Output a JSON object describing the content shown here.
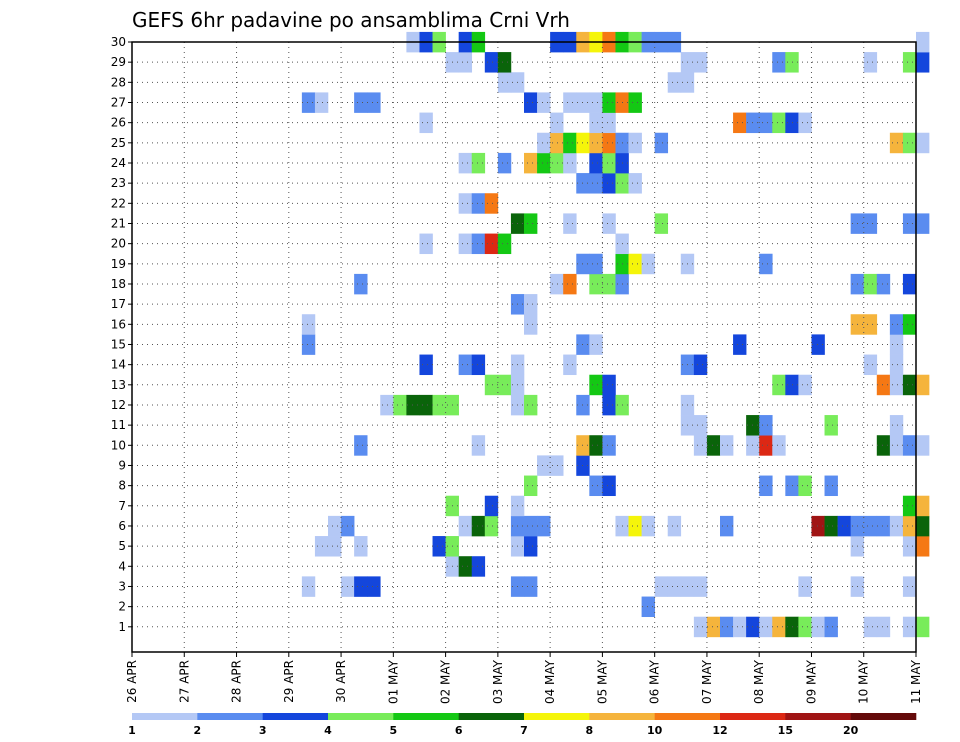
{
  "chart_data": {
    "type": "heatmap",
    "title": "GEFS 6hr padavine po ansamblima Crni Vrh",
    "y_ticks": [
      "1",
      "2",
      "3",
      "4",
      "5",
      "6",
      "7",
      "8",
      "9",
      "10",
      "11",
      "12",
      "13",
      "14",
      "15",
      "16",
      "17",
      "18",
      "19",
      "20",
      "21",
      "22",
      "23",
      "24",
      "25",
      "26",
      "27",
      "28",
      "29",
      "30"
    ],
    "x_ticks": [
      "26 APR",
      "27 APR",
      "28 APR",
      "29 APR",
      "30 APR",
      "01 MAY",
      "02 MAY",
      "03 MAY",
      "04 MAY",
      "05 MAY",
      "06 MAY",
      "07 MAY",
      "08 MAY",
      "09 MAY",
      "10 MAY",
      "11 MAY"
    ],
    "x_range_6hr_steps": [
      0,
      60
    ],
    "grid": true,
    "legend": {
      "placement": "bottom",
      "thresholds": [
        "1",
        "2",
        "3",
        "4",
        "5",
        "6",
        "7",
        "8",
        "10",
        "12",
        "15",
        "20"
      ],
      "colors": [
        "#b4c8f5",
        "#5a8cf0",
        "#1446dc",
        "#78ec5a",
        "#14c814",
        "#0a640a",
        "#f5f50a",
        "#f5b43c",
        "#f57814",
        "#dc2814",
        "#a01414",
        "#640a0a"
      ]
    },
    "cells": [
      [
        1,
        43,
        1
      ],
      [
        1,
        44,
        8
      ],
      [
        1,
        45,
        2
      ],
      [
        1,
        46,
        1
      ],
      [
        1,
        47,
        3
      ],
      [
        1,
        48,
        1
      ],
      [
        1,
        49,
        8
      ],
      [
        1,
        50,
        6
      ],
      [
        1,
        51,
        4
      ],
      [
        1,
        52,
        1
      ],
      [
        1,
        53,
        2
      ],
      [
        1,
        56,
        1
      ],
      [
        1,
        57,
        1
      ],
      [
        1,
        59,
        1
      ],
      [
        1,
        60,
        4
      ],
      [
        2,
        39,
        2
      ],
      [
        3,
        13,
        1
      ],
      [
        3,
        16,
        1
      ],
      [
        3,
        17,
        3
      ],
      [
        3,
        18,
        3
      ],
      [
        3,
        29,
        2
      ],
      [
        3,
        30,
        2
      ],
      [
        3,
        40,
        1
      ],
      [
        3,
        41,
        1
      ],
      [
        3,
        42,
        1
      ],
      [
        3,
        43,
        1
      ],
      [
        3,
        51,
        1
      ],
      [
        3,
        55,
        1
      ],
      [
        3,
        59,
        1
      ],
      [
        4,
        24,
        1
      ],
      [
        4,
        25,
        6
      ],
      [
        4,
        26,
        3
      ],
      [
        5,
        14,
        1
      ],
      [
        5,
        15,
        1
      ],
      [
        5,
        17,
        1
      ],
      [
        5,
        23,
        3
      ],
      [
        5,
        24,
        4
      ],
      [
        5,
        29,
        1
      ],
      [
        5,
        30,
        3
      ],
      [
        5,
        55,
        1
      ],
      [
        5,
        59,
        1
      ],
      [
        5,
        60,
        9
      ],
      [
        6,
        15,
        1
      ],
      [
        6,
        16,
        2
      ],
      [
        6,
        25,
        1
      ],
      [
        6,
        26,
        6
      ],
      [
        6,
        27,
        4
      ],
      [
        6,
        29,
        2
      ],
      [
        6,
        30,
        2
      ],
      [
        6,
        31,
        2
      ],
      [
        6,
        37,
        1
      ],
      [
        6,
        38,
        7
      ],
      [
        6,
        39,
        1
      ],
      [
        6,
        41,
        1
      ],
      [
        6,
        45,
        2
      ],
      [
        6,
        52,
        11
      ],
      [
        6,
        53,
        6
      ],
      [
        6,
        54,
        3
      ],
      [
        6,
        55,
        2
      ],
      [
        6,
        56,
        2
      ],
      [
        6,
        57,
        2
      ],
      [
        6,
        58,
        1
      ],
      [
        6,
        59,
        8
      ],
      [
        6,
        60,
        6
      ],
      [
        7,
        24,
        4
      ],
      [
        7,
        27,
        3
      ],
      [
        7,
        29,
        1
      ],
      [
        7,
        59,
        5
      ],
      [
        7,
        60,
        8
      ],
      [
        8,
        30,
        4
      ],
      [
        8,
        35,
        2
      ],
      [
        8,
        36,
        3
      ],
      [
        8,
        48,
        2
      ],
      [
        8,
        50,
        2
      ],
      [
        8,
        51,
        4
      ],
      [
        8,
        53,
        2
      ],
      [
        9,
        31,
        1
      ],
      [
        9,
        32,
        1
      ],
      [
        9,
        34,
        3
      ],
      [
        10,
        17,
        2
      ],
      [
        10,
        26,
        1
      ],
      [
        10,
        34,
        8
      ],
      [
        10,
        35,
        6
      ],
      [
        10,
        36,
        2
      ],
      [
        10,
        43,
        1
      ],
      [
        10,
        44,
        6
      ],
      [
        10,
        45,
        1
      ],
      [
        10,
        47,
        1
      ],
      [
        10,
        48,
        10
      ],
      [
        10,
        49,
        1
      ],
      [
        10,
        57,
        6
      ],
      [
        10,
        58,
        1
      ],
      [
        10,
        59,
        2
      ],
      [
        10,
        60,
        1
      ],
      [
        11,
        42,
        1
      ],
      [
        11,
        43,
        1
      ],
      [
        11,
        47,
        6
      ],
      [
        11,
        48,
        2
      ],
      [
        11,
        53,
        4
      ],
      [
        11,
        58,
        1
      ],
      [
        12,
        19,
        1
      ],
      [
        12,
        20,
        4
      ],
      [
        12,
        21,
        6
      ],
      [
        12,
        22,
        6
      ],
      [
        12,
        23,
        4
      ],
      [
        12,
        24,
        4
      ],
      [
        12,
        29,
        1
      ],
      [
        12,
        30,
        4
      ],
      [
        12,
        34,
        2
      ],
      [
        12,
        36,
        3
      ],
      [
        12,
        37,
        4
      ],
      [
        12,
        42,
        1
      ],
      [
        13,
        27,
        4
      ],
      [
        13,
        28,
        4
      ],
      [
        13,
        29,
        1
      ],
      [
        13,
        35,
        5
      ],
      [
        13,
        36,
        3
      ],
      [
        13,
        49,
        4
      ],
      [
        13,
        50,
        3
      ],
      [
        13,
        51,
        1
      ],
      [
        13,
        57,
        9
      ],
      [
        13,
        58,
        1
      ],
      [
        13,
        59,
        6
      ],
      [
        13,
        60,
        8
      ],
      [
        14,
        22,
        3
      ],
      [
        14,
        25,
        2
      ],
      [
        14,
        26,
        3
      ],
      [
        14,
        29,
        1
      ],
      [
        14,
        33,
        1
      ],
      [
        14,
        42,
        2
      ],
      [
        14,
        43,
        3
      ],
      [
        14,
        56,
        1
      ],
      [
        14,
        58,
        1
      ],
      [
        15,
        13,
        2
      ],
      [
        15,
        34,
        2
      ],
      [
        15,
        35,
        1
      ],
      [
        15,
        46,
        3
      ],
      [
        15,
        52,
        3
      ],
      [
        15,
        58,
        1
      ],
      [
        16,
        13,
        1
      ],
      [
        16,
        30,
        1
      ],
      [
        16,
        55,
        8
      ],
      [
        16,
        56,
        8
      ],
      [
        16,
        58,
        2
      ],
      [
        16,
        59,
        5
      ],
      [
        17,
        29,
        2
      ],
      [
        17,
        30,
        1
      ],
      [
        18,
        17,
        2
      ],
      [
        18,
        32,
        1
      ],
      [
        18,
        33,
        9
      ],
      [
        18,
        35,
        4
      ],
      [
        18,
        36,
        4
      ],
      [
        18,
        37,
        2
      ],
      [
        18,
        55,
        2
      ],
      [
        18,
        56,
        4
      ],
      [
        18,
        57,
        2
      ],
      [
        18,
        59,
        3
      ],
      [
        19,
        34,
        2
      ],
      [
        19,
        35,
        2
      ],
      [
        19,
        37,
        5
      ],
      [
        19,
        38,
        7
      ],
      [
        19,
        39,
        1
      ],
      [
        19,
        42,
        1
      ],
      [
        19,
        48,
        2
      ],
      [
        20,
        22,
        1
      ],
      [
        20,
        25,
        1
      ],
      [
        20,
        26,
        2
      ],
      [
        20,
        27,
        10
      ],
      [
        20,
        28,
        5
      ],
      [
        20,
        37,
        1
      ],
      [
        21,
        29,
        6
      ],
      [
        21,
        30,
        5
      ],
      [
        21,
        33,
        1
      ],
      [
        21,
        36,
        1
      ],
      [
        21,
        40,
        4
      ],
      [
        21,
        55,
        2
      ],
      [
        21,
        56,
        2
      ],
      [
        21,
        59,
        2
      ],
      [
        21,
        60,
        2
      ],
      [
        22,
        25,
        1
      ],
      [
        22,
        26,
        2
      ],
      [
        22,
        27,
        9
      ],
      [
        23,
        34,
        2
      ],
      [
        23,
        35,
        2
      ],
      [
        23,
        36,
        3
      ],
      [
        23,
        37,
        4
      ],
      [
        23,
        38,
        1
      ],
      [
        24,
        25,
        1
      ],
      [
        24,
        26,
        4
      ],
      [
        24,
        28,
        2
      ],
      [
        24,
        30,
        8
      ],
      [
        24,
        31,
        5
      ],
      [
        24,
        32,
        4
      ],
      [
        24,
        33,
        1
      ],
      [
        24,
        35,
        3
      ],
      [
        24,
        36,
        4
      ],
      [
        24,
        37,
        3
      ],
      [
        25,
        31,
        1
      ],
      [
        25,
        32,
        8
      ],
      [
        25,
        33,
        5
      ],
      [
        25,
        34,
        7
      ],
      [
        25,
        35,
        8
      ],
      [
        25,
        36,
        9
      ],
      [
        25,
        37,
        2
      ],
      [
        25,
        38,
        1
      ],
      [
        25,
        40,
        2
      ],
      [
        25,
        58,
        8
      ],
      [
        25,
        59,
        4
      ],
      [
        25,
        60,
        1
      ],
      [
        26,
        22,
        1
      ],
      [
        26,
        32,
        1
      ],
      [
        26,
        35,
        1
      ],
      [
        26,
        36,
        1
      ],
      [
        26,
        46,
        9
      ],
      [
        26,
        47,
        2
      ],
      [
        26,
        48,
        2
      ],
      [
        26,
        49,
        4
      ],
      [
        26,
        50,
        3
      ],
      [
        26,
        51,
        1
      ],
      [
        27,
        13,
        2
      ],
      [
        27,
        14,
        1
      ],
      [
        27,
        17,
        2
      ],
      [
        27,
        18,
        2
      ],
      [
        27,
        30,
        3
      ],
      [
        27,
        31,
        1
      ],
      [
        27,
        33,
        1
      ],
      [
        27,
        34,
        1
      ],
      [
        27,
        35,
        1
      ],
      [
        27,
        36,
        5
      ],
      [
        27,
        37,
        9
      ],
      [
        27,
        38,
        5
      ],
      [
        28,
        28,
        1
      ],
      [
        28,
        29,
        1
      ],
      [
        28,
        41,
        1
      ],
      [
        28,
        42,
        1
      ],
      [
        29,
        24,
        1
      ],
      [
        29,
        25,
        1
      ],
      [
        29,
        27,
        3
      ],
      [
        29,
        28,
        6
      ],
      [
        29,
        42,
        1
      ],
      [
        29,
        43,
        1
      ],
      [
        29,
        49,
        2
      ],
      [
        29,
        50,
        4
      ],
      [
        29,
        56,
        1
      ],
      [
        29,
        59,
        4
      ],
      [
        29,
        60,
        3
      ],
      [
        30,
        21,
        1
      ],
      [
        30,
        22,
        3
      ],
      [
        30,
        23,
        4
      ],
      [
        30,
        25,
        3
      ],
      [
        30,
        26,
        5
      ],
      [
        30,
        32,
        3
      ],
      [
        30,
        33,
        3
      ],
      [
        30,
        34,
        8
      ],
      [
        30,
        35,
        7
      ],
      [
        30,
        36,
        9
      ],
      [
        30,
        37,
        5
      ],
      [
        30,
        38,
        4
      ],
      [
        30,
        39,
        2
      ],
      [
        30,
        40,
        2
      ],
      [
        30,
        41,
        2
      ],
      [
        30,
        60,
        1
      ]
    ]
  }
}
